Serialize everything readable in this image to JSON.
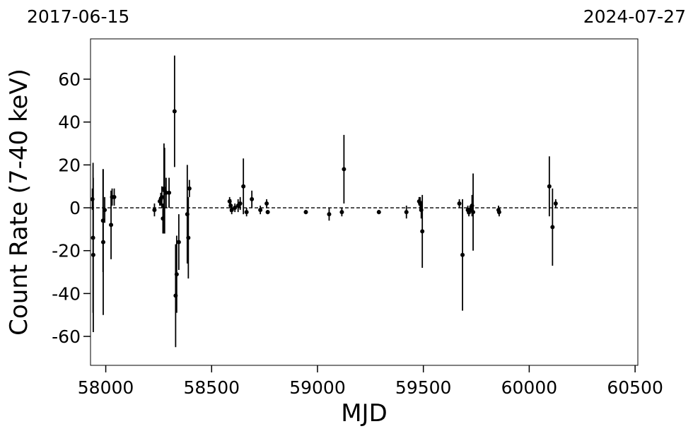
{
  "chart_data": {
    "type": "errorbar",
    "top_labels": [
      "2017-06-15",
      "2024-07-27"
    ],
    "x_label": "MJD",
    "y_label": "Count Rate (7-40 keV)",
    "xlim": [
      57928,
      60513
    ],
    "xticks": [
      58000,
      58500,
      59000,
      59500,
      60000,
      60500
    ],
    "ylim": [
      -73.5,
      78.8
    ],
    "yticks": [
      -60,
      -40,
      -20,
      0,
      20,
      40,
      60
    ],
    "hline": 0,
    "series": [
      {
        "color": "#000000",
        "x": [
          57937,
          57940,
          57941,
          57987,
          57988,
          57995,
          58025,
          58030,
          58040,
          58230,
          58255,
          58260,
          58265,
          58270,
          58275,
          58278,
          58285,
          58299,
          58325,
          58330,
          58335,
          58345,
          58385,
          58390,
          58395,
          58585,
          58590,
          58595,
          58610,
          58625,
          58635,
          58650,
          58665,
          58690,
          58730,
          58760,
          58765,
          58945,
          59055,
          59115,
          59125,
          59290,
          59420,
          59480,
          59485,
          59490,
          59495,
          59670,
          59685,
          59710,
          59715,
          59720,
          59730,
          59735,
          59855,
          59858,
          60095,
          60110,
          60125
        ],
        "values": [
          4,
          -14,
          -22,
          -6,
          -16,
          -1,
          -8,
          5,
          5,
          -1,
          3,
          4,
          5,
          -5,
          9,
          8,
          7,
          7,
          45,
          -41,
          -31,
          -16,
          -3,
          -14,
          9,
          3,
          1,
          -1,
          0,
          1,
          2,
          10,
          -2,
          4,
          -1,
          2,
          -2,
          -2,
          -3,
          -2,
          18,
          -2,
          -2,
          3,
          2,
          -1,
          -11,
          2,
          -22,
          -1,
          -2,
          -1,
          1,
          -2,
          -1,
          -2,
          10,
          -9,
          2
        ],
        "errors": [
          5,
          35,
          36,
          24,
          34,
          6,
          16,
          4,
          4,
          3,
          2,
          3,
          5,
          7,
          21,
          20,
          7,
          7,
          26,
          24,
          18,
          13,
          23,
          19,
          4,
          2,
          3,
          2,
          2,
          3,
          3,
          13,
          2,
          4,
          2,
          2,
          1,
          1,
          3,
          2,
          16,
          1,
          3,
          2,
          3,
          4,
          17,
          2,
          26,
          2,
          2,
          2,
          5,
          18,
          2,
          2,
          14,
          18,
          2
        ]
      }
    ]
  }
}
